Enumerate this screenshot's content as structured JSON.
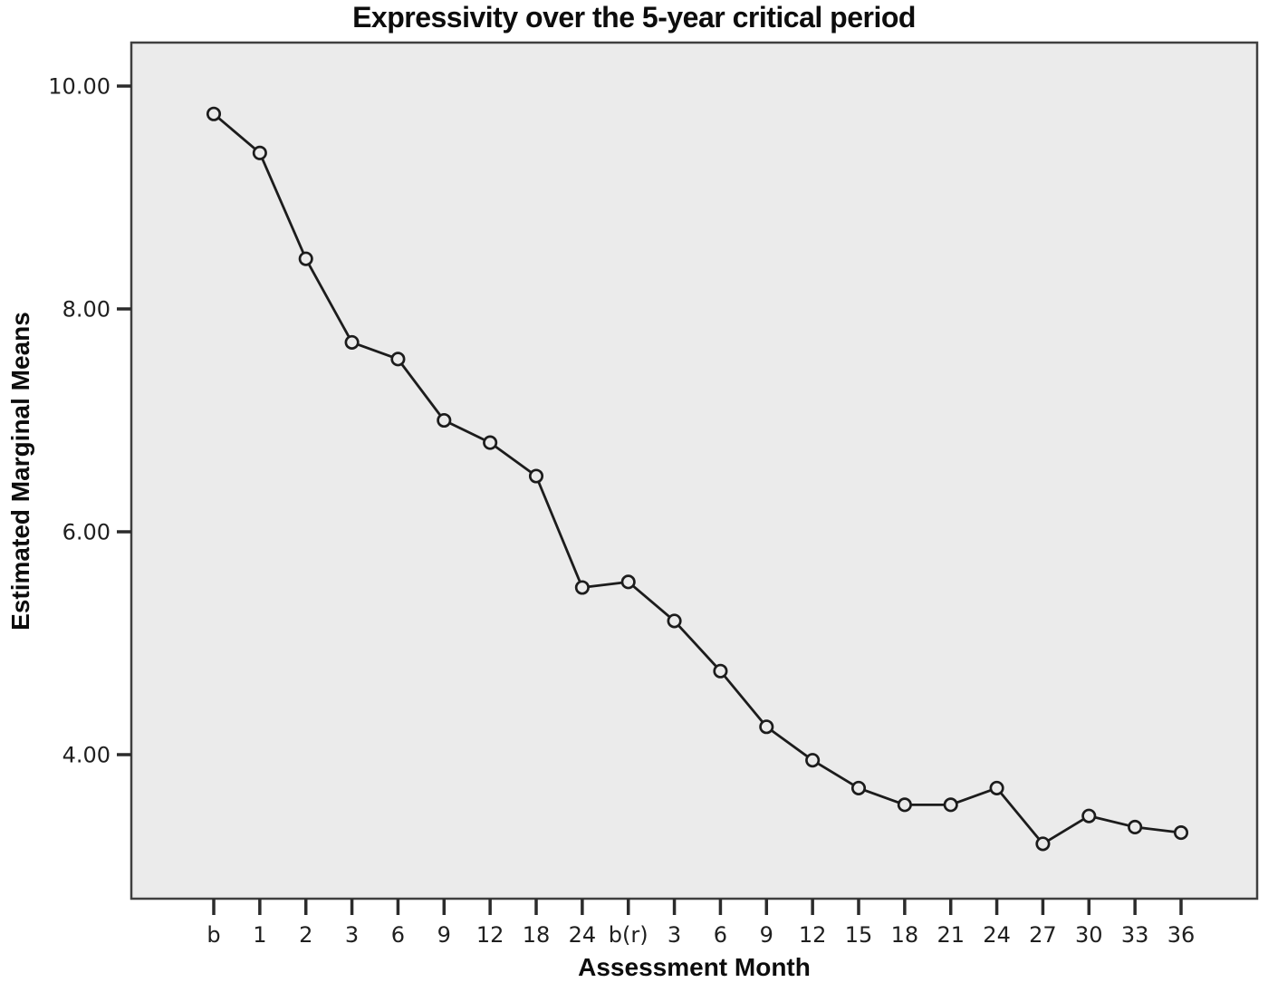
{
  "figure": {
    "background": "#ffffff"
  },
  "chart_data": {
    "type": "line",
    "title": "Expressivity over the 5-year critical period",
    "xlabel": "Assessment Month",
    "ylabel": "Estimated Marginal Means",
    "categories": [
      "b",
      "1",
      "2",
      "3",
      "6",
      "9",
      "12",
      "18",
      "24",
      "b(r)",
      "3",
      "6",
      "9",
      "12",
      "15",
      "18",
      "21",
      "24",
      "27",
      "30",
      "33",
      "36"
    ],
    "series": [
      {
        "name": "Estimated Marginal Means",
        "values": [
          9.75,
          9.4,
          8.45,
          7.7,
          7.55,
          7.0,
          6.8,
          6.5,
          5.5,
          5.55,
          5.2,
          4.75,
          4.25,
          3.95,
          3.7,
          3.55,
          3.55,
          3.7,
          3.2,
          3.45,
          3.35,
          3.3
        ]
      }
    ],
    "yticks": [
      {
        "value": 4,
        "label": "4.00"
      },
      {
        "value": 6,
        "label": "6.00"
      },
      {
        "value": 8,
        "label": "8.00"
      },
      {
        "value": 10,
        "label": "10.00"
      }
    ],
    "ylim": [
      2.71,
      10.39
    ],
    "grid": false,
    "legend": false,
    "marker": "open-circle",
    "colors": {
      "line": "#1c1c1c",
      "plot_background": "#ebebeb",
      "plot_border": "#3f3f3f",
      "tick": "#2b2b2b",
      "text": "#0d0d0d"
    }
  }
}
